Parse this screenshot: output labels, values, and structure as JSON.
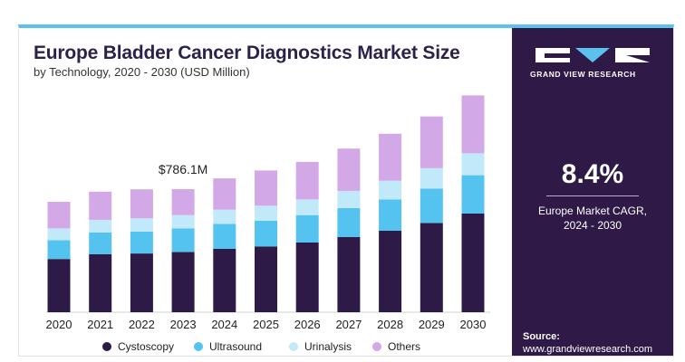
{
  "header": {
    "title": "Europe Bladder Cancer Diagnostics Market Size",
    "subtitle": "by Technology, 2020 - 2030 (USD Million)"
  },
  "panel": {
    "brand": "GRAND VIEW RESEARCH",
    "cagr_value": "8.4%",
    "cagr_label_line1": "Europe Market CAGR,",
    "cagr_label_line2": "2024 - 2030",
    "source_label": "Source:",
    "source_url": "www.grandviewresearch.com"
  },
  "colors": {
    "accent": "#5bc2ee",
    "panel_bg": "#2f1a47",
    "title": "#2c2249"
  },
  "chart_data": {
    "type": "bar",
    "stacked": true,
    "categories": [
      "2020",
      "2021",
      "2022",
      "2023",
      "2024",
      "2025",
      "2026",
      "2027",
      "2028",
      "2029",
      "2030"
    ],
    "series": [
      {
        "name": "Cystoscopy",
        "color": "#2d1a47",
        "values": [
          340,
          370,
          375,
          385,
          405,
          420,
          445,
          480,
          520,
          570,
          630
        ]
      },
      {
        "name": "Ultrasound",
        "color": "#54c3ef",
        "values": [
          120,
          140,
          140,
          150,
          160,
          165,
          175,
          185,
          200,
          220,
          245
        ]
      },
      {
        "name": "Urinalysis",
        "color": "#c2e9f9",
        "values": [
          75,
          80,
          85,
          85,
          90,
          95,
          100,
          110,
          120,
          130,
          140
        ]
      },
      {
        "name": "Others",
        "color": "#d2a8e6",
        "values": [
          170,
          180,
          185,
          166,
          200,
          225,
          240,
          270,
          300,
          330,
          370
        ]
      }
    ],
    "annotation": {
      "category": "2023",
      "text": "$786.1M"
    },
    "legend_position": "bottom",
    "grid": false
  }
}
